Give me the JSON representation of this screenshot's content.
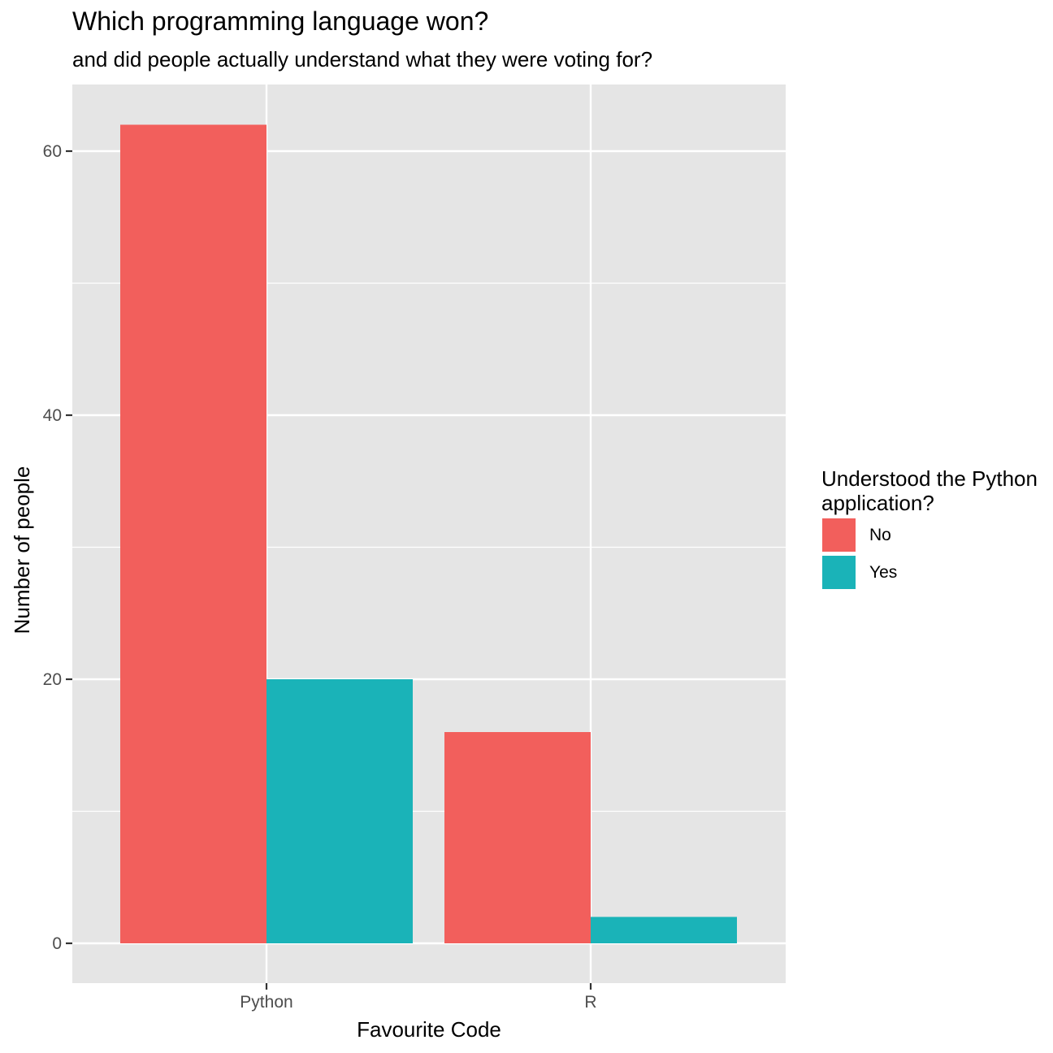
{
  "chart_data": {
    "type": "bar",
    "title": "Which programming language won?",
    "subtitle": "and did people actually understand what they were voting for?",
    "xlabel": "Favourite Code",
    "ylabel": "Number of people",
    "categories": [
      "Python",
      "R"
    ],
    "series": [
      {
        "name": "No",
        "color": "#F25F5C",
        "values": [
          62,
          16
        ]
      },
      {
        "name": "Yes",
        "color": "#1AB3B8",
        "values": [
          20,
          2
        ]
      }
    ],
    "ylim": [
      -3,
      65.1
    ],
    "yticks": [
      0,
      20,
      40,
      60
    ],
    "y_minor_ticks": [
      10,
      30,
      50
    ],
    "grid": true,
    "panel_background": "#E5E5E5",
    "legend": {
      "title": "Understood the Python application?",
      "position": "right"
    }
  }
}
